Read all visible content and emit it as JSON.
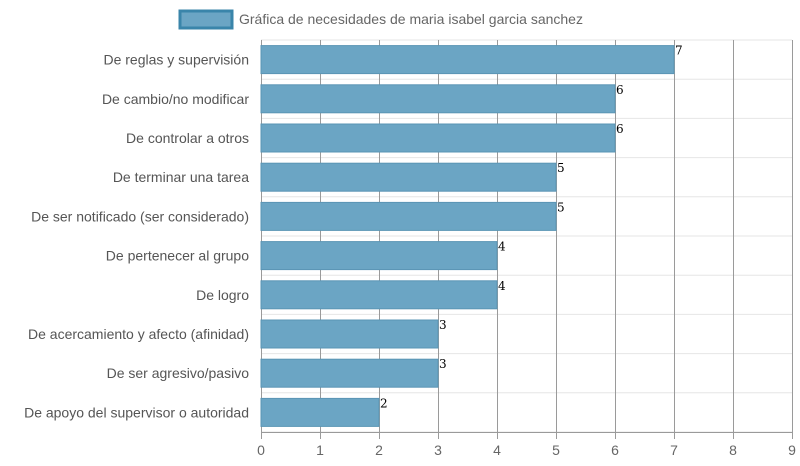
{
  "chart_data": {
    "type": "bar",
    "orientation": "horizontal",
    "categories": [
      "De reglas y supervisión",
      "De cambio/no modificar",
      "De controlar a otros",
      "De terminar una tarea",
      "De ser notificado (ser considerado)",
      "De pertenecer al grupo",
      "De logro",
      "De acercamiento y afecto (afinidad)",
      "De ser agresivo/pasivo",
      "De apoyo del supervisor o autoridad"
    ],
    "series": [
      {
        "name": "Gráfica de necesidades de maria isabel garcia sanchez",
        "values": [
          7,
          6,
          6,
          5,
          5,
          4,
          4,
          3,
          3,
          2
        ]
      }
    ],
    "xlim": [
      0,
      9
    ],
    "xticks": [
      0,
      1,
      2,
      3,
      4,
      5,
      6,
      7,
      8,
      9
    ],
    "grid": true,
    "legend": "top-center",
    "data_labels": true,
    "colors": {
      "bar_fill": "#6ba5c4",
      "bar_stroke": "#5a95b5",
      "legend_border": "#3a85aa",
      "grid": "#e6e6e6",
      "grid_major": "#9a9a9a"
    }
  }
}
